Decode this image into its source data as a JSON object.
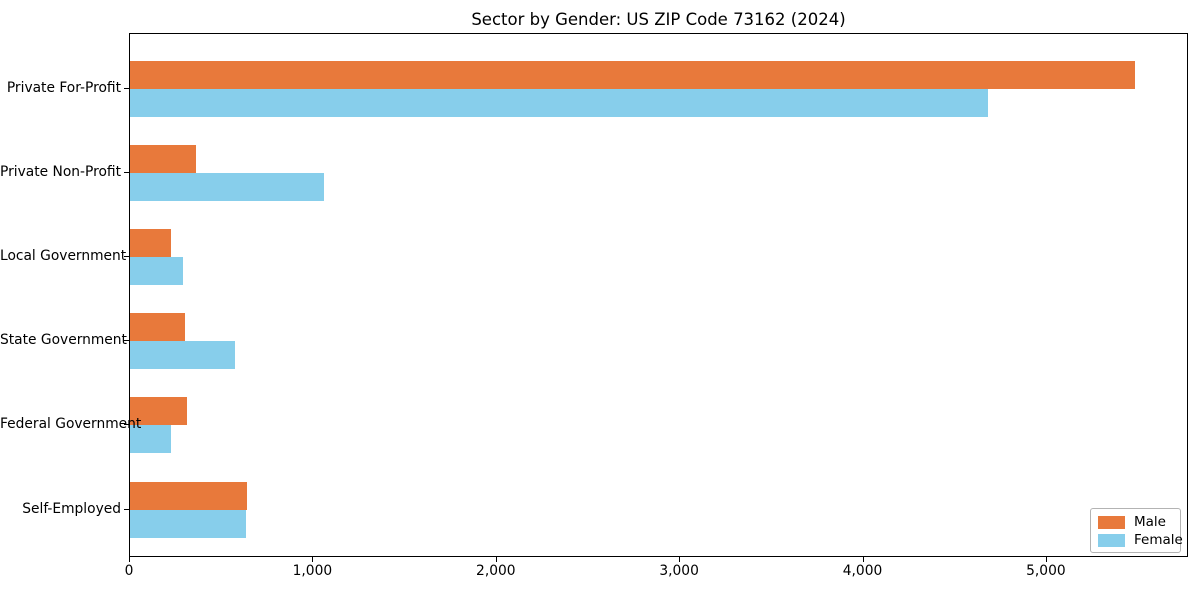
{
  "chart_data": {
    "type": "bar",
    "orientation": "horizontal",
    "title": "Sector by Gender: US ZIP Code 73162 (2024)",
    "categories": [
      "Private For-Profit",
      "Private Non-Profit",
      "Local Government",
      "State Government",
      "Federal Government",
      "Self-Employed"
    ],
    "series": [
      {
        "name": "Male",
        "color": "#E8793B",
        "values": [
          5480,
          360,
          225,
          300,
          310,
          640
        ]
      },
      {
        "name": "Female",
        "color": "#87CEEB",
        "values": [
          4680,
          1055,
          290,
          575,
          225,
          635
        ]
      }
    ],
    "xlabel": "",
    "ylabel": "",
    "xlim": [
      0,
      5775
    ],
    "x_ticks": [
      0,
      1000,
      2000,
      3000,
      4000,
      5000
    ],
    "x_tick_labels": [
      "0",
      "1,000",
      "2,000",
      "3,000",
      "4,000",
      "5,000"
    ],
    "grid": false,
    "legend_position": "lower right",
    "background_color": "#ffffff",
    "axis_color": "#000000"
  }
}
